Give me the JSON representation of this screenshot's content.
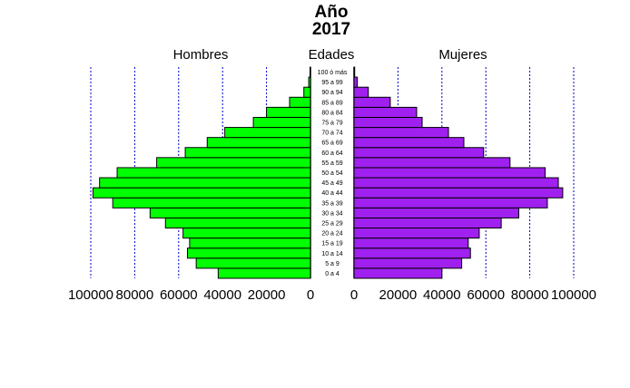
{
  "chart_data": {
    "type": "bar",
    "title_line1": "Año",
    "title_line2": "2017",
    "left_label": "Hombres",
    "center_label": "Edades",
    "right_label": "Mujeres",
    "categories": [
      "0 a 4",
      "5 a 9",
      "10 a 14",
      "15 a 19",
      "20 a 24",
      "25 a 29",
      "30 a 34",
      "35 a 39",
      "40 a 44",
      "45 a 49",
      "50 a 54",
      "55 a 59",
      "60 a 64",
      "65 a 69",
      "70 a 74",
      "75 a 79",
      "80 a 84",
      "85 a 89",
      "90 a 94",
      "95 a 99",
      "100 ó más"
    ],
    "series": [
      {
        "name": "Hombres",
        "color": "#00ff00",
        "values": [
          42000,
          52000,
          56000,
          55000,
          58000,
          66000,
          73000,
          90000,
          99000,
          96000,
          88000,
          70000,
          57000,
          47000,
          39000,
          26000,
          20000,
          9500,
          3000,
          800,
          200
        ]
      },
      {
        "name": "Mujeres",
        "color": "#a020f0",
        "values": [
          40000,
          49000,
          53000,
          52000,
          57000,
          67000,
          75000,
          88000,
          95000,
          93000,
          87000,
          71000,
          59000,
          50000,
          43000,
          31000,
          28500,
          16500,
          6500,
          1500,
          300
        ]
      }
    ],
    "x_ticks_left": [
      "100000",
      "80000",
      "60000",
      "40000",
      "20000",
      "0"
    ],
    "x_ticks_right": [
      "0",
      "20000",
      "40000",
      "60000",
      "80000",
      "100000"
    ],
    "xlim": [
      0,
      100000
    ],
    "grid": true
  }
}
